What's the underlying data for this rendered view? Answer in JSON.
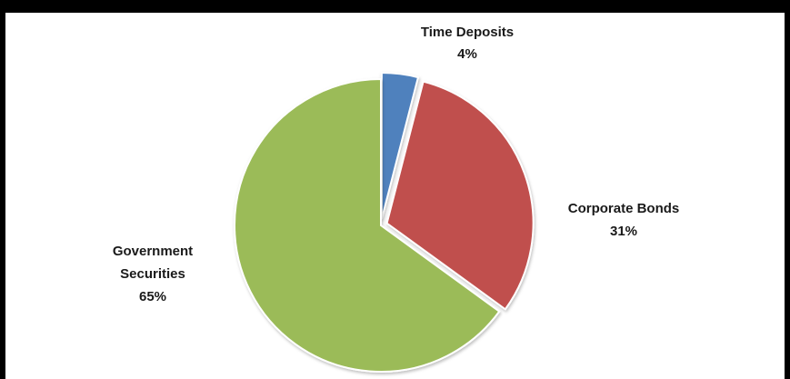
{
  "chart_data": {
    "type": "pie",
    "slices": [
      {
        "label_lines": [
          "Time Deposits"
        ],
        "value_label": "4%",
        "value": 4,
        "color": "#4f81bd"
      },
      {
        "label_lines": [
          "Corporate Bonds"
        ],
        "value_label": "31%",
        "value": 31,
        "color": "#c0504d"
      },
      {
        "label_lines": [
          "Government",
          "Securities"
        ],
        "value_label": "65%",
        "value": 65,
        "color": "#9bbb59"
      }
    ],
    "legend": "none",
    "exploded_slices": [
      "Time Deposits",
      "Corporate Bonds"
    ]
  }
}
